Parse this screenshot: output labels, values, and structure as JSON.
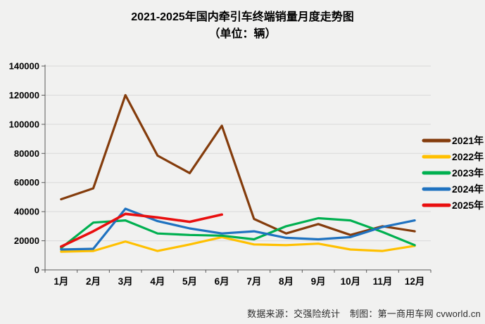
{
  "title": {
    "line1": "2021-2025年国内牵引车终端销量月度走势图",
    "line2": "（单位：辆）"
  },
  "footer": {
    "source": "数据来源：交强险统计",
    "credit": "制图：第一商用车网 cvworld.cn"
  },
  "chart_data": {
    "type": "line",
    "title": "2021-2025年国内牵引车终端销量月度走势图",
    "subtitle": "（单位：辆）",
    "unit": "辆",
    "categories": [
      "1月",
      "2月",
      "3月",
      "4月",
      "5月",
      "6月",
      "7月",
      "8月",
      "9月",
      "10月",
      "11月",
      "12月"
    ],
    "series": [
      {
        "name": "2021年",
        "color": "#843C0C",
        "values": [
          48500,
          56000,
          120000,
          78500,
          66500,
          99000,
          35000,
          25000,
          31500,
          24000,
          30000,
          26500
        ]
      },
      {
        "name": "2022年",
        "color": "#FFC000",
        "values": [
          12500,
          13000,
          19500,
          13000,
          17500,
          22500,
          17500,
          17000,
          18000,
          14000,
          13000,
          16500
        ]
      },
      {
        "name": "2023年",
        "color": "#00B050",
        "values": [
          15000,
          32500,
          34000,
          25000,
          24000,
          23500,
          21000,
          30000,
          35500,
          34000,
          26000,
          17000
        ]
      },
      {
        "name": "2024年",
        "color": "#1F72C0",
        "values": [
          14000,
          14500,
          42000,
          33500,
          28500,
          25000,
          26500,
          22000,
          21000,
          22500,
          29500,
          34000
        ]
      },
      {
        "name": "2025年",
        "color": "#E90F0F",
        "values": [
          16000,
          26500,
          38500,
          36000,
          33000,
          38000
        ]
      }
    ],
    "ylim": [
      0,
      140000
    ],
    "ytick_step": 20000,
    "ytick_labels": [
      "0",
      "20000",
      "40000",
      "60000",
      "80000",
      "100000",
      "120000",
      "140000"
    ],
    "grid": true,
    "legend_position": "right",
    "axis_color": "#595959",
    "grid_color": "#d9d9d9",
    "label_color": "#000000"
  }
}
